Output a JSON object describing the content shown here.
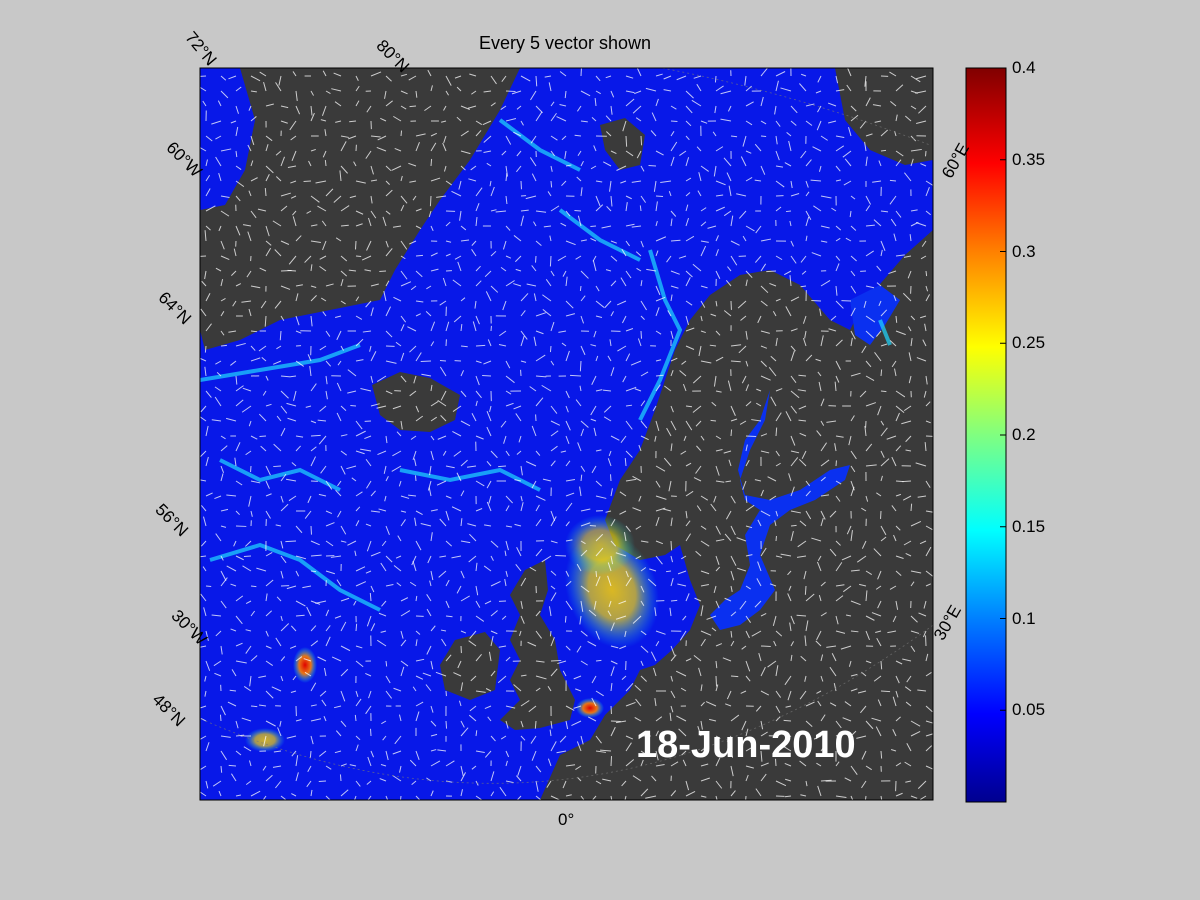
{
  "figure": {
    "title": "Every 5 vector shown",
    "date_label": "18-Jun-2010"
  },
  "map_labels": {
    "lat_72N": "72°N",
    "lat_80N": "80°N",
    "lon_60W": "60°W",
    "lat_64N": "64°N",
    "lat_56N": "56°N",
    "lon_30W": "30°W",
    "lat_48N": "48°N",
    "lon_0": "0°",
    "lon_60E_top": "60°E",
    "lon_30E": "30°E"
  },
  "colorbar": {
    "min": 0,
    "max": 0.4,
    "ticks": [
      "0.4",
      "0.35",
      "0.3",
      "0.25",
      "0.2",
      "0.15",
      "0.1",
      "0.05"
    ],
    "colors": [
      "#00008f",
      "#0000ff",
      "#0080ff",
      "#00ffff",
      "#80ff80",
      "#ffff00",
      "#ff8000",
      "#ff0000",
      "#800000"
    ]
  },
  "colors": {
    "land": "#3a3a3a",
    "ocean_low": "#0010e0",
    "vector": "#ffffff",
    "background": "#c8c8c8"
  }
}
